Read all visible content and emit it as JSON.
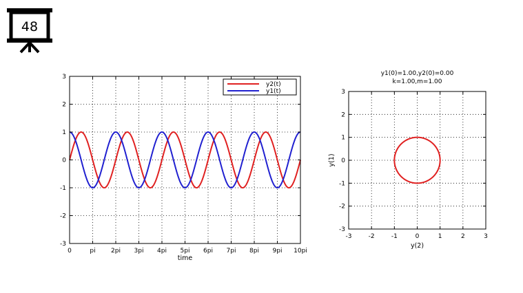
{
  "slide": {
    "number": "48",
    "icon": "projector-screen-icon"
  },
  "chart_data": [
    {
      "type": "line",
      "x_tick_labels": [
        "0",
        "pi",
        "2pi",
        "3pi",
        "4pi",
        "5pi",
        "6pi",
        "7pi",
        "8pi",
        "9pi",
        "10pi"
      ],
      "y_ticks": [
        -3,
        -2,
        -1,
        0,
        1,
        2,
        3
      ],
      "xlim": [
        0,
        31.4159
      ],
      "ylim": [
        -3,
        3
      ],
      "xlabel": "time",
      "ylabel": "",
      "grid": true,
      "legend": "top-right",
      "series": [
        {
          "name": "y2(t)",
          "color": "#e02020",
          "function": "sin(t)",
          "x": [
            0,
            0.785,
            1.571,
            2.356,
            3.142,
            3.927,
            4.712,
            5.498,
            6.283
          ],
          "values": [
            0,
            0.71,
            1,
            0.71,
            0,
            -0.71,
            -1,
            -0.71,
            0
          ]
        },
        {
          "name": "y1(t)",
          "color": "#2020d0",
          "function": "cos(t)",
          "x": [
            0,
            0.785,
            1.571,
            2.356,
            3.142,
            3.927,
            4.712,
            5.498,
            6.283
          ],
          "values": [
            1,
            0.71,
            0,
            -0.71,
            -1,
            -0.71,
            0,
            0.71,
            1
          ]
        }
      ]
    },
    {
      "type": "line",
      "title": "y1(0)=1.00,y2(0)=0.00",
      "subtitle": "k=1.00,m=1.00",
      "xlabel": "y(2)",
      "ylabel": "y(1)",
      "xlim": [
        -3,
        3
      ],
      "ylim": [
        -3,
        3
      ],
      "x_ticks": [
        -3,
        -2,
        -1,
        0,
        1,
        2,
        3
      ],
      "y_ticks": [
        -3,
        -2,
        -1,
        0,
        1,
        2,
        3
      ],
      "grid": true,
      "series": [
        {
          "color": "#e02020",
          "description": "unit circle y2^2 + y1^2 = 1",
          "x": [
            1,
            0.71,
            0,
            -0.71,
            -1,
            -0.71,
            0,
            0.71,
            1
          ],
          "values": [
            0,
            0.71,
            1,
            0.71,
            0,
            -0.71,
            -1,
            -0.71,
            0
          ]
        }
      ]
    }
  ]
}
